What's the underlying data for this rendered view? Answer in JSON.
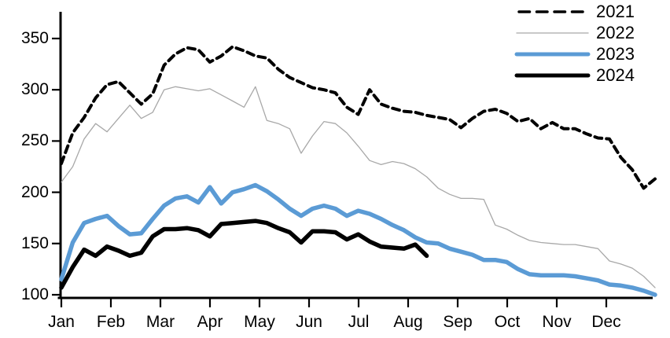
{
  "chart_data": {
    "type": "line",
    "title": "",
    "xlabel": "",
    "ylabel": "",
    "x_unit": "week of year",
    "x_axis": {
      "tick_labels": [
        "Jan",
        "Feb",
        "Mar",
        "Apr",
        "May",
        "Jun",
        "Jul",
        "Aug",
        "Sep",
        "Oct",
        "Nov",
        "Dec"
      ]
    },
    "y_axis": {
      "ticks": [
        350,
        300,
        250,
        200,
        150,
        100
      ],
      "range": [
        100,
        350
      ],
      "grid": false
    },
    "legend": {
      "position": "top-right",
      "entries": [
        "2021",
        "2022",
        "2023",
        "2024"
      ]
    },
    "series": [
      {
        "name": "2021",
        "style": "dashed",
        "color": "#000000",
        "width": 4,
        "values": [
          228,
          258,
          273,
          292,
          305,
          308,
          297,
          286,
          296,
          324,
          335,
          341,
          339,
          327,
          333,
          342,
          338,
          333,
          331,
          320,
          312,
          307,
          302,
          300,
          297,
          283,
          276,
          300,
          286,
          282,
          279,
          278,
          275,
          273,
          271,
          263,
          272,
          279,
          281,
          277,
          269,
          272,
          262,
          268,
          262,
          262,
          257,
          253,
          252,
          234,
          222,
          204,
          213
        ]
      },
      {
        "name": "2022",
        "style": "solid",
        "color": "#a8a8a8",
        "width": 1.3,
        "values": [
          210,
          225,
          252,
          267,
          259,
          272,
          285,
          272,
          278,
          300,
          303,
          301,
          299,
          301,
          295,
          289,
          283,
          303,
          270,
          267,
          262,
          238,
          255,
          269,
          267,
          258,
          245,
          231,
          227,
          230,
          228,
          223,
          215,
          204,
          198,
          194,
          194,
          193,
          168,
          164,
          158,
          153,
          151,
          150,
          149,
          149,
          147,
          145,
          133,
          130,
          126,
          118,
          107
        ]
      },
      {
        "name": "2023",
        "style": "solid",
        "color": "#5B9BD5",
        "width": 5.5,
        "values": [
          115,
          151,
          170,
          174,
          177,
          167,
          159,
          160,
          174,
          187,
          194,
          196,
          190,
          205,
          189,
          200,
          203,
          207,
          201,
          193,
          184,
          177,
          184,
          187,
          184,
          177,
          182,
          179,
          174,
          168,
          163,
          156,
          151,
          150,
          145,
          142,
          139,
          134,
          134,
          132,
          125,
          120,
          119,
          119,
          119,
          118,
          116,
          114,
          110,
          109,
          107,
          104,
          100
        ]
      },
      {
        "name": "2024",
        "style": "solid",
        "color": "#000000",
        "width": 5.5,
        "values": [
          107,
          127,
          144,
          138,
          147,
          143,
          138,
          141,
          157,
          164,
          164,
          165,
          163,
          157,
          169,
          170,
          171,
          172,
          170,
          165,
          161,
          151,
          162,
          162,
          161,
          154,
          159,
          152,
          147,
          146,
          145,
          149,
          138
        ]
      }
    ],
    "axis_color": "#000000"
  }
}
